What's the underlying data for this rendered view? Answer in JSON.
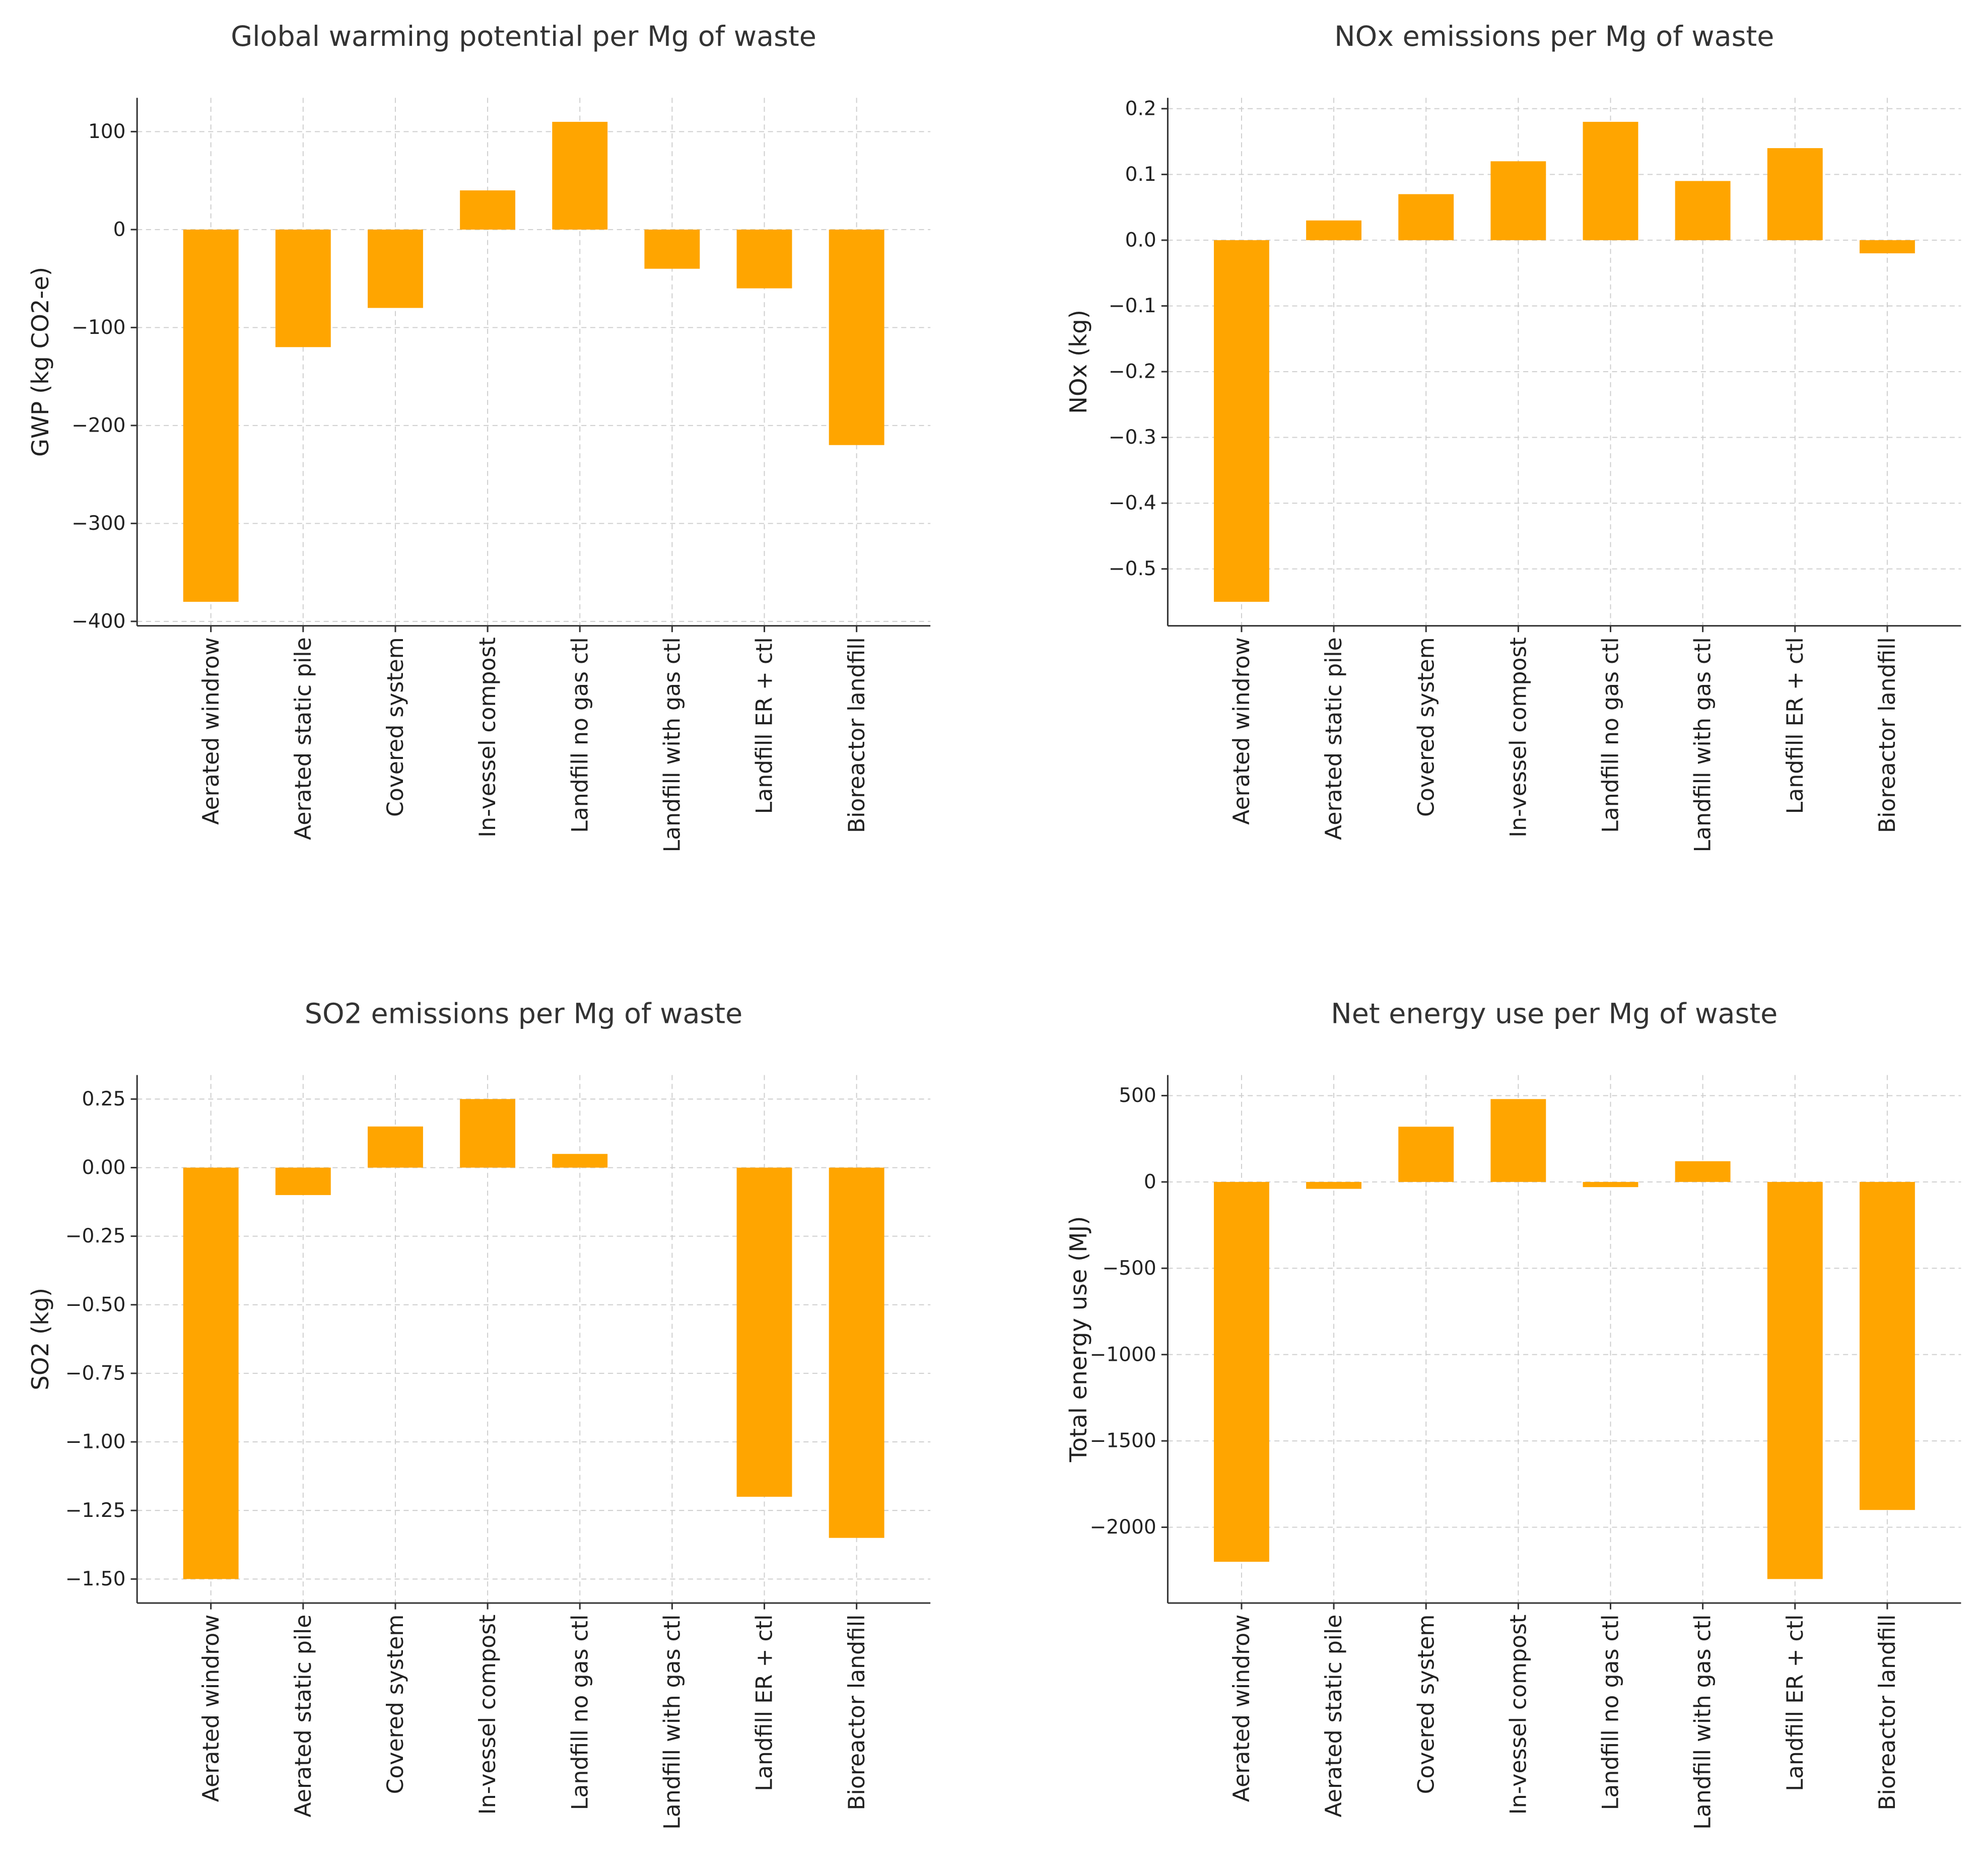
{
  "bar_color": "#FFA500",
  "chart_data": [
    {
      "type": "bar",
      "title": "Global warming potential per Mg of waste",
      "xlabel": "",
      "ylabel": "GWP (kg CO2-e)",
      "categories": [
        "Aerated windrow",
        "Aerated static pile",
        "Covered system",
        "In-vessel compost",
        "Landfill no gas ctl",
        "Landfill with gas ctl",
        "Landfill ER + ctl",
        "Bioreactor landfill"
      ],
      "values": [
        -380,
        -120,
        -80,
        40,
        110,
        -40,
        -60,
        -220
      ],
      "yticks": [
        100,
        0,
        -100,
        -200,
        -300,
        -400
      ],
      "ytick_labels": [
        "100",
        "0",
        "−100",
        "−200",
        "−300",
        "−400"
      ],
      "ylim": [
        -404.5,
        134.5
      ],
      "grid": true
    },
    {
      "type": "bar",
      "title": "NOx emissions per Mg of waste",
      "xlabel": "",
      "ylabel": "NOx (kg)",
      "categories": [
        "Aerated windrow",
        "Aerated static pile",
        "Covered system",
        "In-vessel compost",
        "Landfill no gas ctl",
        "Landfill with gas ctl",
        "Landfill ER + ctl",
        "Bioreactor landfill"
      ],
      "values": [
        -0.55,
        0.03,
        0.07,
        0.12,
        0.18,
        0.09,
        0.14,
        -0.02
      ],
      "yticks": [
        0.2,
        0.1,
        0.0,
        -0.1,
        -0.2,
        -0.3,
        -0.4,
        -0.5
      ],
      "ytick_labels": [
        "0.2",
        "0.1",
        "0.0",
        "−0.1",
        "−0.2",
        "−0.3",
        "−0.4",
        "−0.5"
      ],
      "ylim": [
        -0.5865,
        0.2165
      ],
      "grid": true
    },
    {
      "type": "bar",
      "title": "SO2 emissions per Mg of waste",
      "xlabel": "",
      "ylabel": "SO2 (kg)",
      "categories": [
        "Aerated windrow",
        "Aerated static pile",
        "Covered system",
        "In-vessel compost",
        "Landfill no gas ctl",
        "Landfill with gas ctl",
        "Landfill ER + ctl",
        "Bioreactor landfill"
      ],
      "values": [
        -1.5,
        -0.1,
        0.15,
        0.25,
        0.05,
        0,
        -1.2,
        -1.35
      ],
      "yticks": [
        0.25,
        0,
        -0.25,
        -0.5,
        -0.75,
        -1.0,
        -1.25,
        -1.5
      ],
      "ytick_labels": [
        "0.25",
        "0.00",
        "−0.25",
        "−0.50",
        "−0.75",
        "−1.00",
        "−1.25",
        "−1.50"
      ],
      "ylim": [
        -1.5875,
        0.3375
      ],
      "grid": true
    },
    {
      "type": "bar",
      "title": "Net energy use per Mg of waste",
      "xlabel": "",
      "ylabel": "Total energy use (MJ)",
      "categories": [
        "Aerated windrow",
        "Aerated static pile",
        "Covered system",
        "In-vessel compost",
        "Landfill no gas ctl",
        "Landfill with gas ctl",
        "Landfill ER + ctl",
        "Bioreactor landfill"
      ],
      "values": [
        -2200,
        -40,
        320,
        480,
        -30,
        120,
        -2300,
        -1900
      ],
      "yticks": [
        500,
        0,
        -500,
        -1000,
        -1500,
        -2000
      ],
      "ytick_labels": [
        "500",
        "0",
        "−500",
        "−1000",
        "−1500",
        "−2000"
      ],
      "ylim": [
        -2439,
        619
      ],
      "grid": true
    }
  ]
}
